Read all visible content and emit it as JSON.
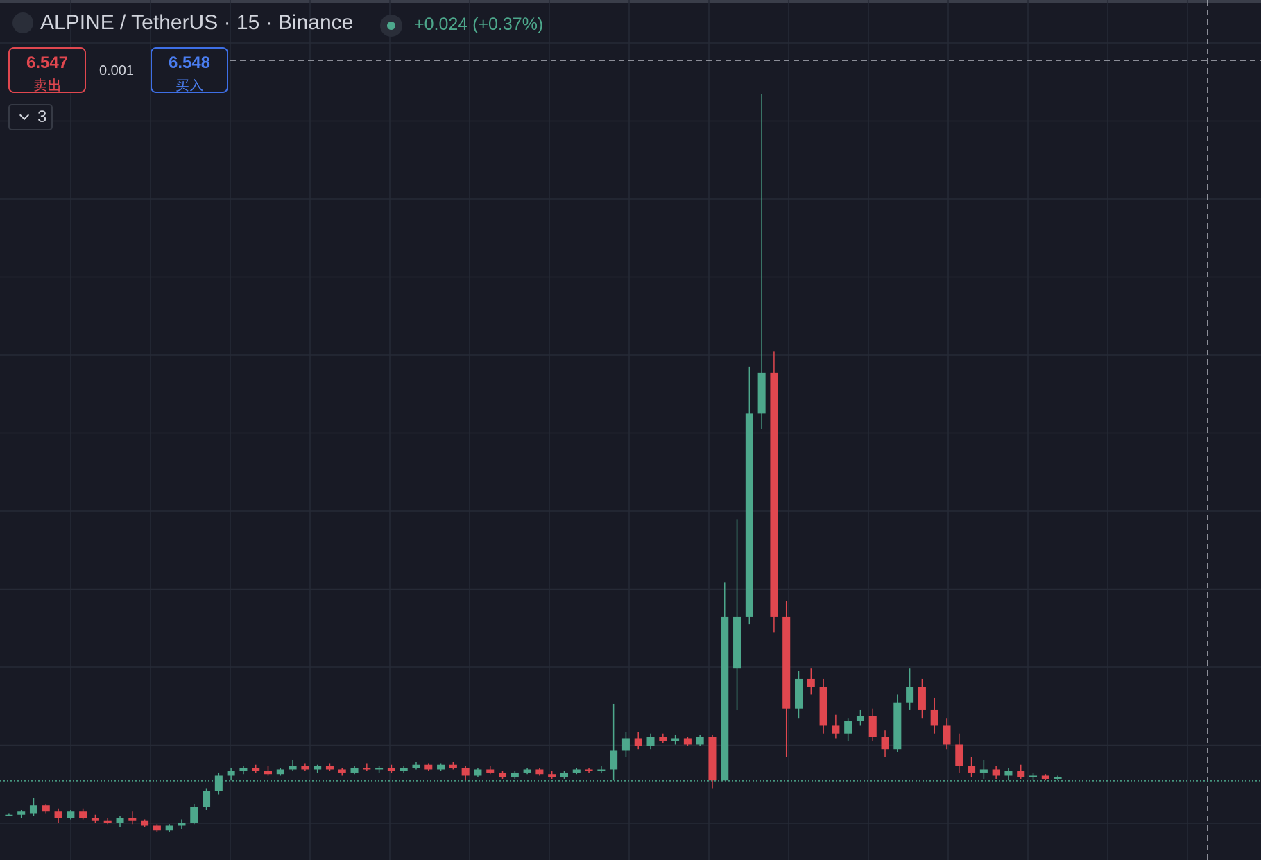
{
  "header": {
    "symbol": "ALPINE / TetherUS · 15 · Binance",
    "change": "+0.024 (+0.37%)"
  },
  "trade": {
    "sell": {
      "price": 6.547,
      "label": "卖出"
    },
    "spread": 0.001,
    "buy": {
      "price": 6.548,
      "label": "买入"
    }
  },
  "indicators": {
    "count": 3
  },
  "chart_data": {
    "type": "candlestick",
    "up_color": "#4da88c",
    "down_color": "#e0474f",
    "ylim": [
      6.04,
      11.55
    ],
    "grid": true,
    "ohlc": [
      [
        6.33,
        6.34,
        6.32,
        6.33
      ],
      [
        6.33,
        6.36,
        6.31,
        6.35
      ],
      [
        6.34,
        6.44,
        6.32,
        6.39
      ],
      [
        6.39,
        6.4,
        6.34,
        6.35
      ],
      [
        6.35,
        6.37,
        6.28,
        6.31
      ],
      [
        6.31,
        6.36,
        6.3,
        6.35
      ],
      [
        6.35,
        6.37,
        6.3,
        6.31
      ],
      [
        6.31,
        6.33,
        6.28,
        6.29
      ],
      [
        6.29,
        6.31,
        6.27,
        6.28
      ],
      [
        6.28,
        6.32,
        6.25,
        6.31
      ],
      [
        6.31,
        6.35,
        6.27,
        6.29
      ],
      [
        6.29,
        6.3,
        6.25,
        6.26
      ],
      [
        6.26,
        6.27,
        6.22,
        6.23
      ],
      [
        6.23,
        6.27,
        6.22,
        6.26
      ],
      [
        6.26,
        6.3,
        6.24,
        6.28
      ],
      [
        6.28,
        6.4,
        6.27,
        6.38
      ],
      [
        6.38,
        6.5,
        6.36,
        6.48
      ],
      [
        6.48,
        6.6,
        6.46,
        6.58
      ],
      [
        6.58,
        6.63,
        6.55,
        6.61
      ],
      [
        6.61,
        6.64,
        6.59,
        6.63
      ],
      [
        6.63,
        6.65,
        6.6,
        6.61
      ],
      [
        6.61,
        6.64,
        6.58,
        6.59
      ],
      [
        6.59,
        6.63,
        6.58,
        6.62
      ],
      [
        6.62,
        6.68,
        6.61,
        6.64
      ],
      [
        6.64,
        6.66,
        6.61,
        6.62
      ],
      [
        6.62,
        6.65,
        6.6,
        6.64
      ],
      [
        6.64,
        6.66,
        6.61,
        6.62
      ],
      [
        6.62,
        6.63,
        6.58,
        6.6
      ],
      [
        6.6,
        6.64,
        6.59,
        6.63
      ],
      [
        6.63,
        6.66,
        6.61,
        6.62
      ],
      [
        6.62,
        6.64,
        6.6,
        6.63
      ],
      [
        6.63,
        6.65,
        6.6,
        6.61
      ],
      [
        6.61,
        6.64,
        6.6,
        6.63
      ],
      [
        6.63,
        6.67,
        6.62,
        6.65
      ],
      [
        6.65,
        6.66,
        6.61,
        6.62
      ],
      [
        6.62,
        6.66,
        6.61,
        6.65
      ],
      [
        6.65,
        6.67,
        6.62,
        6.63
      ],
      [
        6.63,
        6.64,
        6.55,
        6.58
      ],
      [
        6.58,
        6.63,
        6.57,
        6.62
      ],
      [
        6.62,
        6.64,
        6.59,
        6.6
      ],
      [
        6.6,
        6.61,
        6.56,
        6.57
      ],
      [
        6.57,
        6.61,
        6.56,
        6.6
      ],
      [
        6.6,
        6.63,
        6.59,
        6.62
      ],
      [
        6.62,
        6.63,
        6.58,
        6.59
      ],
      [
        6.59,
        6.61,
        6.56,
        6.57
      ],
      [
        6.57,
        6.61,
        6.56,
        6.6
      ],
      [
        6.6,
        6.63,
        6.59,
        6.62
      ],
      [
        6.62,
        6.63,
        6.6,
        6.61
      ],
      [
        6.61,
        6.64,
        6.6,
        6.62
      ],
      [
        6.62,
        7.04,
        6.55,
        6.74
      ],
      [
        6.74,
        6.86,
        6.7,
        6.82
      ],
      [
        6.82,
        6.86,
        6.75,
        6.77
      ],
      [
        6.77,
        6.85,
        6.75,
        6.83
      ],
      [
        6.83,
        6.85,
        6.79,
        6.8
      ],
      [
        6.8,
        6.84,
        6.78,
        6.82
      ],
      [
        6.82,
        6.83,
        6.77,
        6.78
      ],
      [
        6.78,
        6.84,
        6.77,
        6.83
      ],
      [
        6.83,
        6.84,
        6.5,
        6.55
      ],
      [
        6.55,
        7.82,
        6.55,
        7.6
      ],
      [
        7.27,
        8.22,
        7.0,
        7.6
      ],
      [
        7.6,
        9.2,
        7.55,
        8.9
      ],
      [
        8.9,
        10.95,
        8.8,
        9.16
      ],
      [
        9.16,
        9.3,
        7.5,
        7.6
      ],
      [
        7.6,
        7.7,
        6.7,
        7.01
      ],
      [
        7.01,
        7.25,
        6.95,
        7.2
      ],
      [
        7.2,
        7.27,
        7.1,
        7.15
      ],
      [
        7.15,
        7.2,
        6.85,
        6.9
      ],
      [
        6.9,
        6.97,
        6.82,
        6.85
      ],
      [
        6.85,
        6.95,
        6.8,
        6.93
      ],
      [
        6.93,
        7.0,
        6.9,
        6.96
      ],
      [
        6.96,
        7.01,
        6.8,
        6.83
      ],
      [
        6.83,
        6.87,
        6.7,
        6.75
      ],
      [
        6.75,
        7.1,
        6.73,
        7.05
      ],
      [
        7.05,
        7.27,
        7.0,
        7.15
      ],
      [
        7.15,
        7.2,
        6.95,
        7.0
      ],
      [
        7.0,
        7.08,
        6.85,
        6.9
      ],
      [
        6.9,
        6.95,
        6.75,
        6.78
      ],
      [
        6.78,
        6.85,
        6.6,
        6.64
      ],
      [
        6.64,
        6.7,
        6.57,
        6.6
      ],
      [
        6.6,
        6.68,
        6.56,
        6.62
      ],
      [
        6.62,
        6.64,
        6.56,
        6.58
      ],
      [
        6.58,
        6.63,
        6.55,
        6.61
      ],
      [
        6.61,
        6.65,
        6.56,
        6.57
      ],
      [
        6.57,
        6.6,
        6.55,
        6.58
      ],
      [
        6.58,
        6.59,
        6.55,
        6.56
      ],
      [
        6.56,
        6.58,
        6.55,
        6.57
      ]
    ]
  }
}
